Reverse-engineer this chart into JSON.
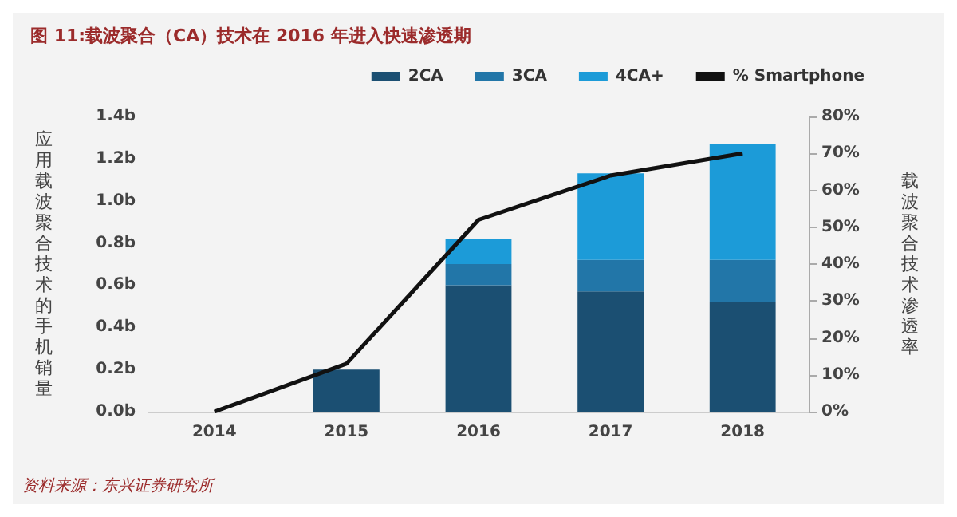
{
  "chart_data": {
    "type": "bar",
    "title": "图 11:载波聚合（CA）技术在 2016 年进入快速渗透期",
    "ylabel": "应用载波聚合技术的手机销量",
    "y2label": "载波聚合技术渗透率",
    "categories": [
      "2014",
      "2015",
      "2016",
      "2017",
      "2018"
    ],
    "stacked": true,
    "series": [
      {
        "name": "2CA",
        "color": "#1b4f72",
        "values": [
          0,
          0.2,
          0.6,
          0.57,
          0.52
        ]
      },
      {
        "name": "3CA",
        "color": "#2276a8",
        "values": [
          0,
          0,
          0.1,
          0.15,
          0.2
        ]
      },
      {
        "name": "4CA+",
        "color": "#1c9bd8",
        "values": [
          0,
          0,
          0.12,
          0.41,
          0.55
        ]
      },
      {
        "name": "% Smartphone",
        "type": "line",
        "axis": "y2",
        "color": "#111111",
        "values": [
          0,
          13,
          52,
          64,
          70
        ],
        "marker": "none"
      }
    ],
    "ylim": [
      0,
      1.4
    ],
    "yticks": [
      {
        "value": 0,
        "label": "0.0b"
      },
      {
        "value": 0.2,
        "label": "0.2b"
      },
      {
        "value": 0.4,
        "label": "0.4b"
      },
      {
        "value": 0.6,
        "label": "0.6b"
      },
      {
        "value": 0.8,
        "label": "0.8b"
      },
      {
        "value": 1,
        "label": "1.0b"
      },
      {
        "value": 1.2,
        "label": "1.2b"
      },
      {
        "value": 1.4,
        "label": "1.4b"
      }
    ],
    "y2lim": [
      0,
      80
    ],
    "y2ticks": [
      {
        "value": 0,
        "label": "0%"
      },
      {
        "value": 10,
        "label": "10%"
      },
      {
        "value": 20,
        "label": "20%"
      },
      {
        "value": 30,
        "label": "30%"
      },
      {
        "value": 40,
        "label": "40%"
      },
      {
        "value": 50,
        "label": "50%"
      },
      {
        "value": 60,
        "label": "60%"
      },
      {
        "value": 70,
        "label": "70%"
      },
      {
        "value": 80,
        "label": "80%"
      }
    ],
    "grid": false,
    "legend": "top right",
    "annotations": [
      "资料来源：东兴证券研究所"
    ]
  }
}
